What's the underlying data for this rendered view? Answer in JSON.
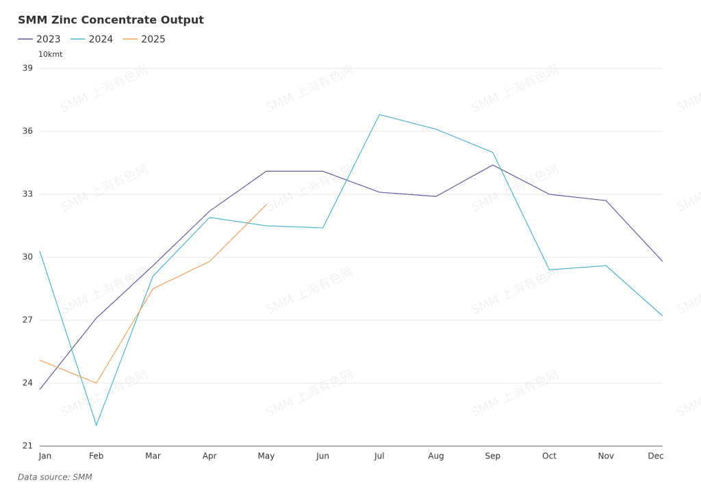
{
  "chart_data": {
    "type": "line",
    "title": "SMM Zinc Concentrate Output",
    "y_axis_label": "10kmt",
    "source": "Data source:  SMM",
    "watermark": "SMM 上海有色网",
    "categories": [
      "Jan",
      "Feb",
      "Mar",
      "Apr",
      "May",
      "Jun",
      "Jul",
      "Aug",
      "Sep",
      "Oct",
      "Nov",
      "Dec"
    ],
    "series": [
      {
        "name": "2023",
        "color": "#5b5f97",
        "values": [
          23.7,
          27.1,
          29.6,
          32.2,
          34.1,
          34.1,
          33.1,
          32.9,
          34.4,
          33.0,
          32.7,
          29.8
        ]
      },
      {
        "name": "2024",
        "color": "#4cb5c9",
        "values": [
          30.3,
          22.0,
          29.1,
          31.9,
          31.5,
          31.4,
          36.8,
          36.1,
          35.0,
          29.4,
          29.6,
          27.2
        ]
      },
      {
        "name": "2025",
        "color": "#f0a35c",
        "values": [
          25.1,
          24.0,
          28.5,
          29.8,
          32.5,
          null,
          null,
          null,
          null,
          null,
          null,
          null
        ]
      }
    ],
    "ylim": [
      21,
      39
    ],
    "yticks": [
      21,
      24,
      27,
      30,
      33,
      36,
      39
    ],
    "grid": true
  }
}
